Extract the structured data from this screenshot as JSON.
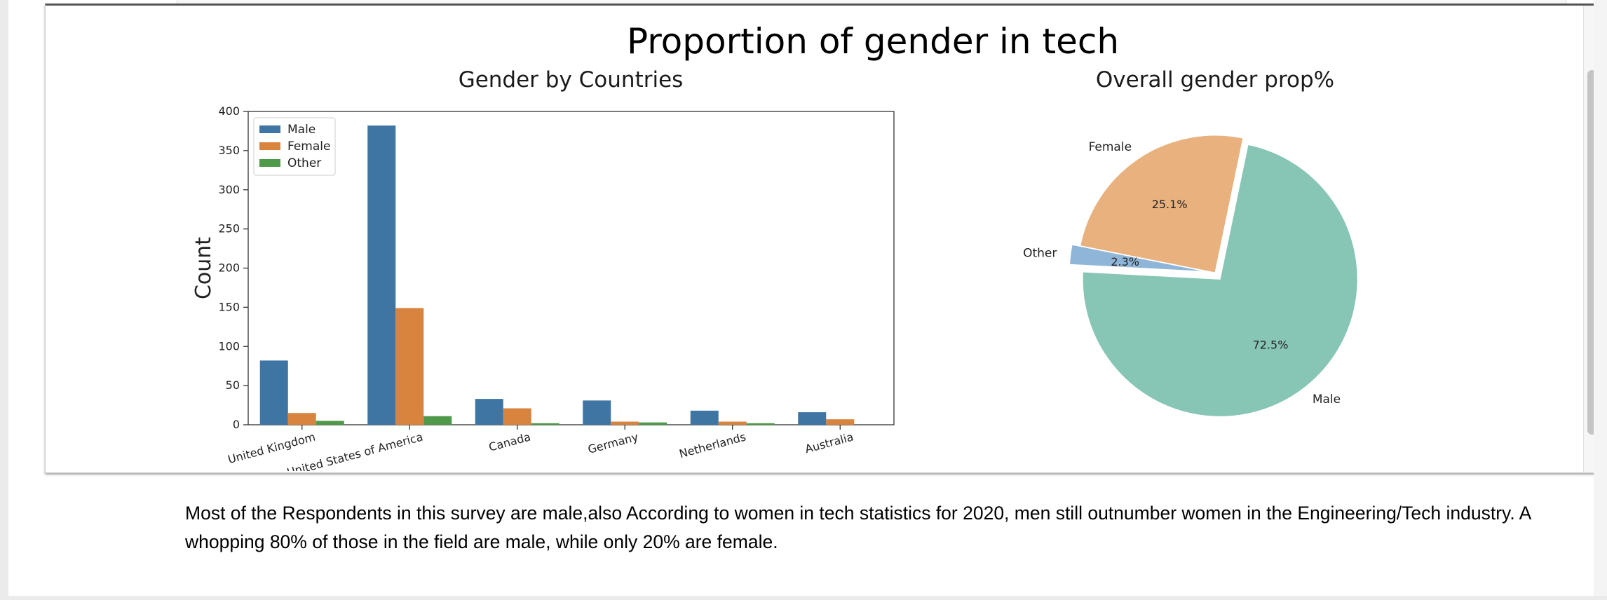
{
  "chart_data": [
    {
      "type": "bar",
      "title": "Proportion of gender in tech",
      "subtitle": "Gender by Countries",
      "xlabel": "",
      "ylabel": "Count",
      "ylim": [
        0,
        400
      ],
      "yticks": [
        0,
        50,
        100,
        150,
        200,
        250,
        300,
        350,
        400
      ],
      "categories": [
        "United Kingdom",
        "United States of America",
        "Canada",
        "Germany",
        "Netherlands",
        "Australia"
      ],
      "series": [
        {
          "name": "Male",
          "color": "#3e75a3",
          "values": [
            82,
            382,
            33,
            31,
            18,
            16
          ]
        },
        {
          "name": "Female",
          "color": "#d9843e",
          "values": [
            15,
            149,
            21,
            4,
            4,
            7
          ]
        },
        {
          "name": "Other",
          "color": "#4e9a4a",
          "values": [
            5,
            11,
            2,
            3,
            2,
            0
          ]
        }
      ],
      "legend": "top-left",
      "grid": false
    },
    {
      "type": "pie",
      "title": "Overall gender prop%",
      "slices": [
        {
          "label": "Male",
          "value": 72.5,
          "pct_label": "72.5%",
          "color": "#87c5b5",
          "explode": true
        },
        {
          "label": "Female",
          "value": 25.1,
          "pct_label": "25.1%",
          "color": "#e8b17d",
          "explode": false
        },
        {
          "label": "Other",
          "value": 2.3,
          "pct_label": "2.3%",
          "color": "#8fb6d8",
          "explode": true
        }
      ]
    }
  ],
  "markdown": {
    "text": "Most of the Respondents in this survey are male,also According to women in tech statistics for 2020, men still outnumber women in the Engineering/Tech industry. A whopping 80% of those in the field are male, while only 20% are female."
  }
}
